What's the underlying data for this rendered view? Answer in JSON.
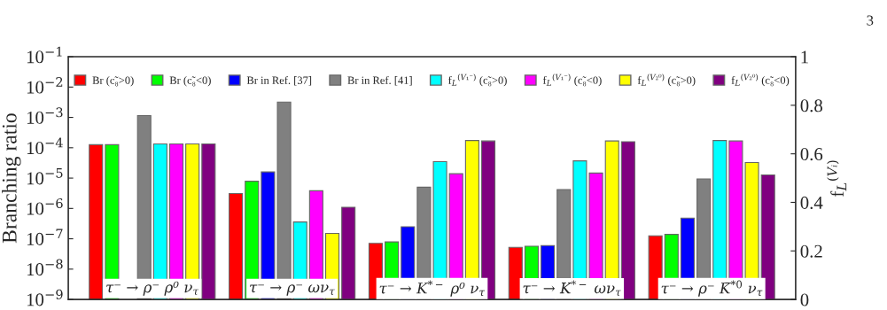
{
  "chart_data": {
    "type": "bar",
    "categories": [
      "τ⁻ → ρ⁻ ρ⁰ ν$_{τ}$",
      "τ⁻ → ρ⁻ ων$_{τ}$",
      "τ⁻ → K$^{*−}$ ρ⁰ ν$_{τ}$",
      "τ⁻ → K$^{*−}$ ων$_{τ}$",
      "τ⁻ → ρ⁻ K̄$^{*0}$ ν$_{τ}$"
    ],
    "ylabel": "Branching ratio",
    "y2label": "f$_{L}$$^{(Vᵢ)}$",
    "log": "y",
    "ylim": [
      1e-09,
      0.1
    ],
    "yticks": [
      {
        "value": 1e-09,
        "label": "10$^{−9}$"
      },
      {
        "value": 1e-08,
        "label": "10$^{−8}$"
      },
      {
        "value": 1e-07,
        "label": "10$^{−7}$"
      },
      {
        "value": 1e-06,
        "label": "10$^{−6}$"
      },
      {
        "value": 1e-05,
        "label": "10$^{−5}$"
      },
      {
        "value": 0.0001,
        "label": "10$^{−4}$"
      },
      {
        "value": 0.001,
        "label": "10$^{−3}$"
      },
      {
        "value": 0.01,
        "label": "10$^{−2}$"
      },
      {
        "value": 0.1,
        "label": "10$^{−1}$"
      }
    ],
    "y2lim": [
      0,
      1
    ],
    "y2ticks": [
      0,
      0.2,
      0.4,
      0.6,
      0.8,
      1
    ],
    "legend": "top",
    "grid": false,
    "annotations": [
      "3"
    ],
    "series": [
      {
        "name": "Br (c̃₈>0)",
        "color": "#ff0000",
        "values": [
          0.000126,
          3.1e-06,
          7.1e-08,
          5.2e-08,
          1.25e-07
        ]
      },
      {
        "name": "Br (c̃₈<0)",
        "color": "#00ff00",
        "values": [
          0.000126,
          7.9e-06,
          7.9e-08,
          5.7e-08,
          1.4e-07
        ]
      },
      {
        "name": "Br in Ref. [37]",
        "color": "#0000ff",
        "values": [
          null,
          1.6e-05,
          2.5e-07,
          6e-08,
          4.8e-07
        ]
      },
      {
        "name": "Br in Ref. [41]",
        "color": "#808080",
        "values": [
          0.00115,
          0.0032,
          5e-06,
          4.2e-06,
          9.3e-06
        ]
      },
      {
        "name": "f$_{L}$$^{(V₁⁻)}$ (c̃₈>0)",
        "color": "#00ffff",
        "axis": "y2",
        "values": [
          0.641,
          0.319,
          0.568,
          0.571,
          0.655
        ]
      },
      {
        "name": "f$_{L}$$^{(V₁⁻)}$ (c̃₈<0)",
        "color": "#ff00ff",
        "axis": "y2",
        "values": [
          0.641,
          0.448,
          0.518,
          0.521,
          0.653
        ]
      },
      {
        "name": "f$_{L}$$^{(V₂⁰)}$ (c̃₈>0)",
        "color": "#ffff00",
        "axis": "y2",
        "values": [
          0.641,
          0.272,
          0.655,
          0.653,
          0.564
        ]
      },
      {
        "name": "f$_{L}$$^{(V₂⁰)}$ (c̃₈<0)",
        "color": "#800080",
        "axis": "y2",
        "values": [
          0.641,
          0.38,
          0.653,
          0.65,
          0.513
        ]
      }
    ]
  }
}
